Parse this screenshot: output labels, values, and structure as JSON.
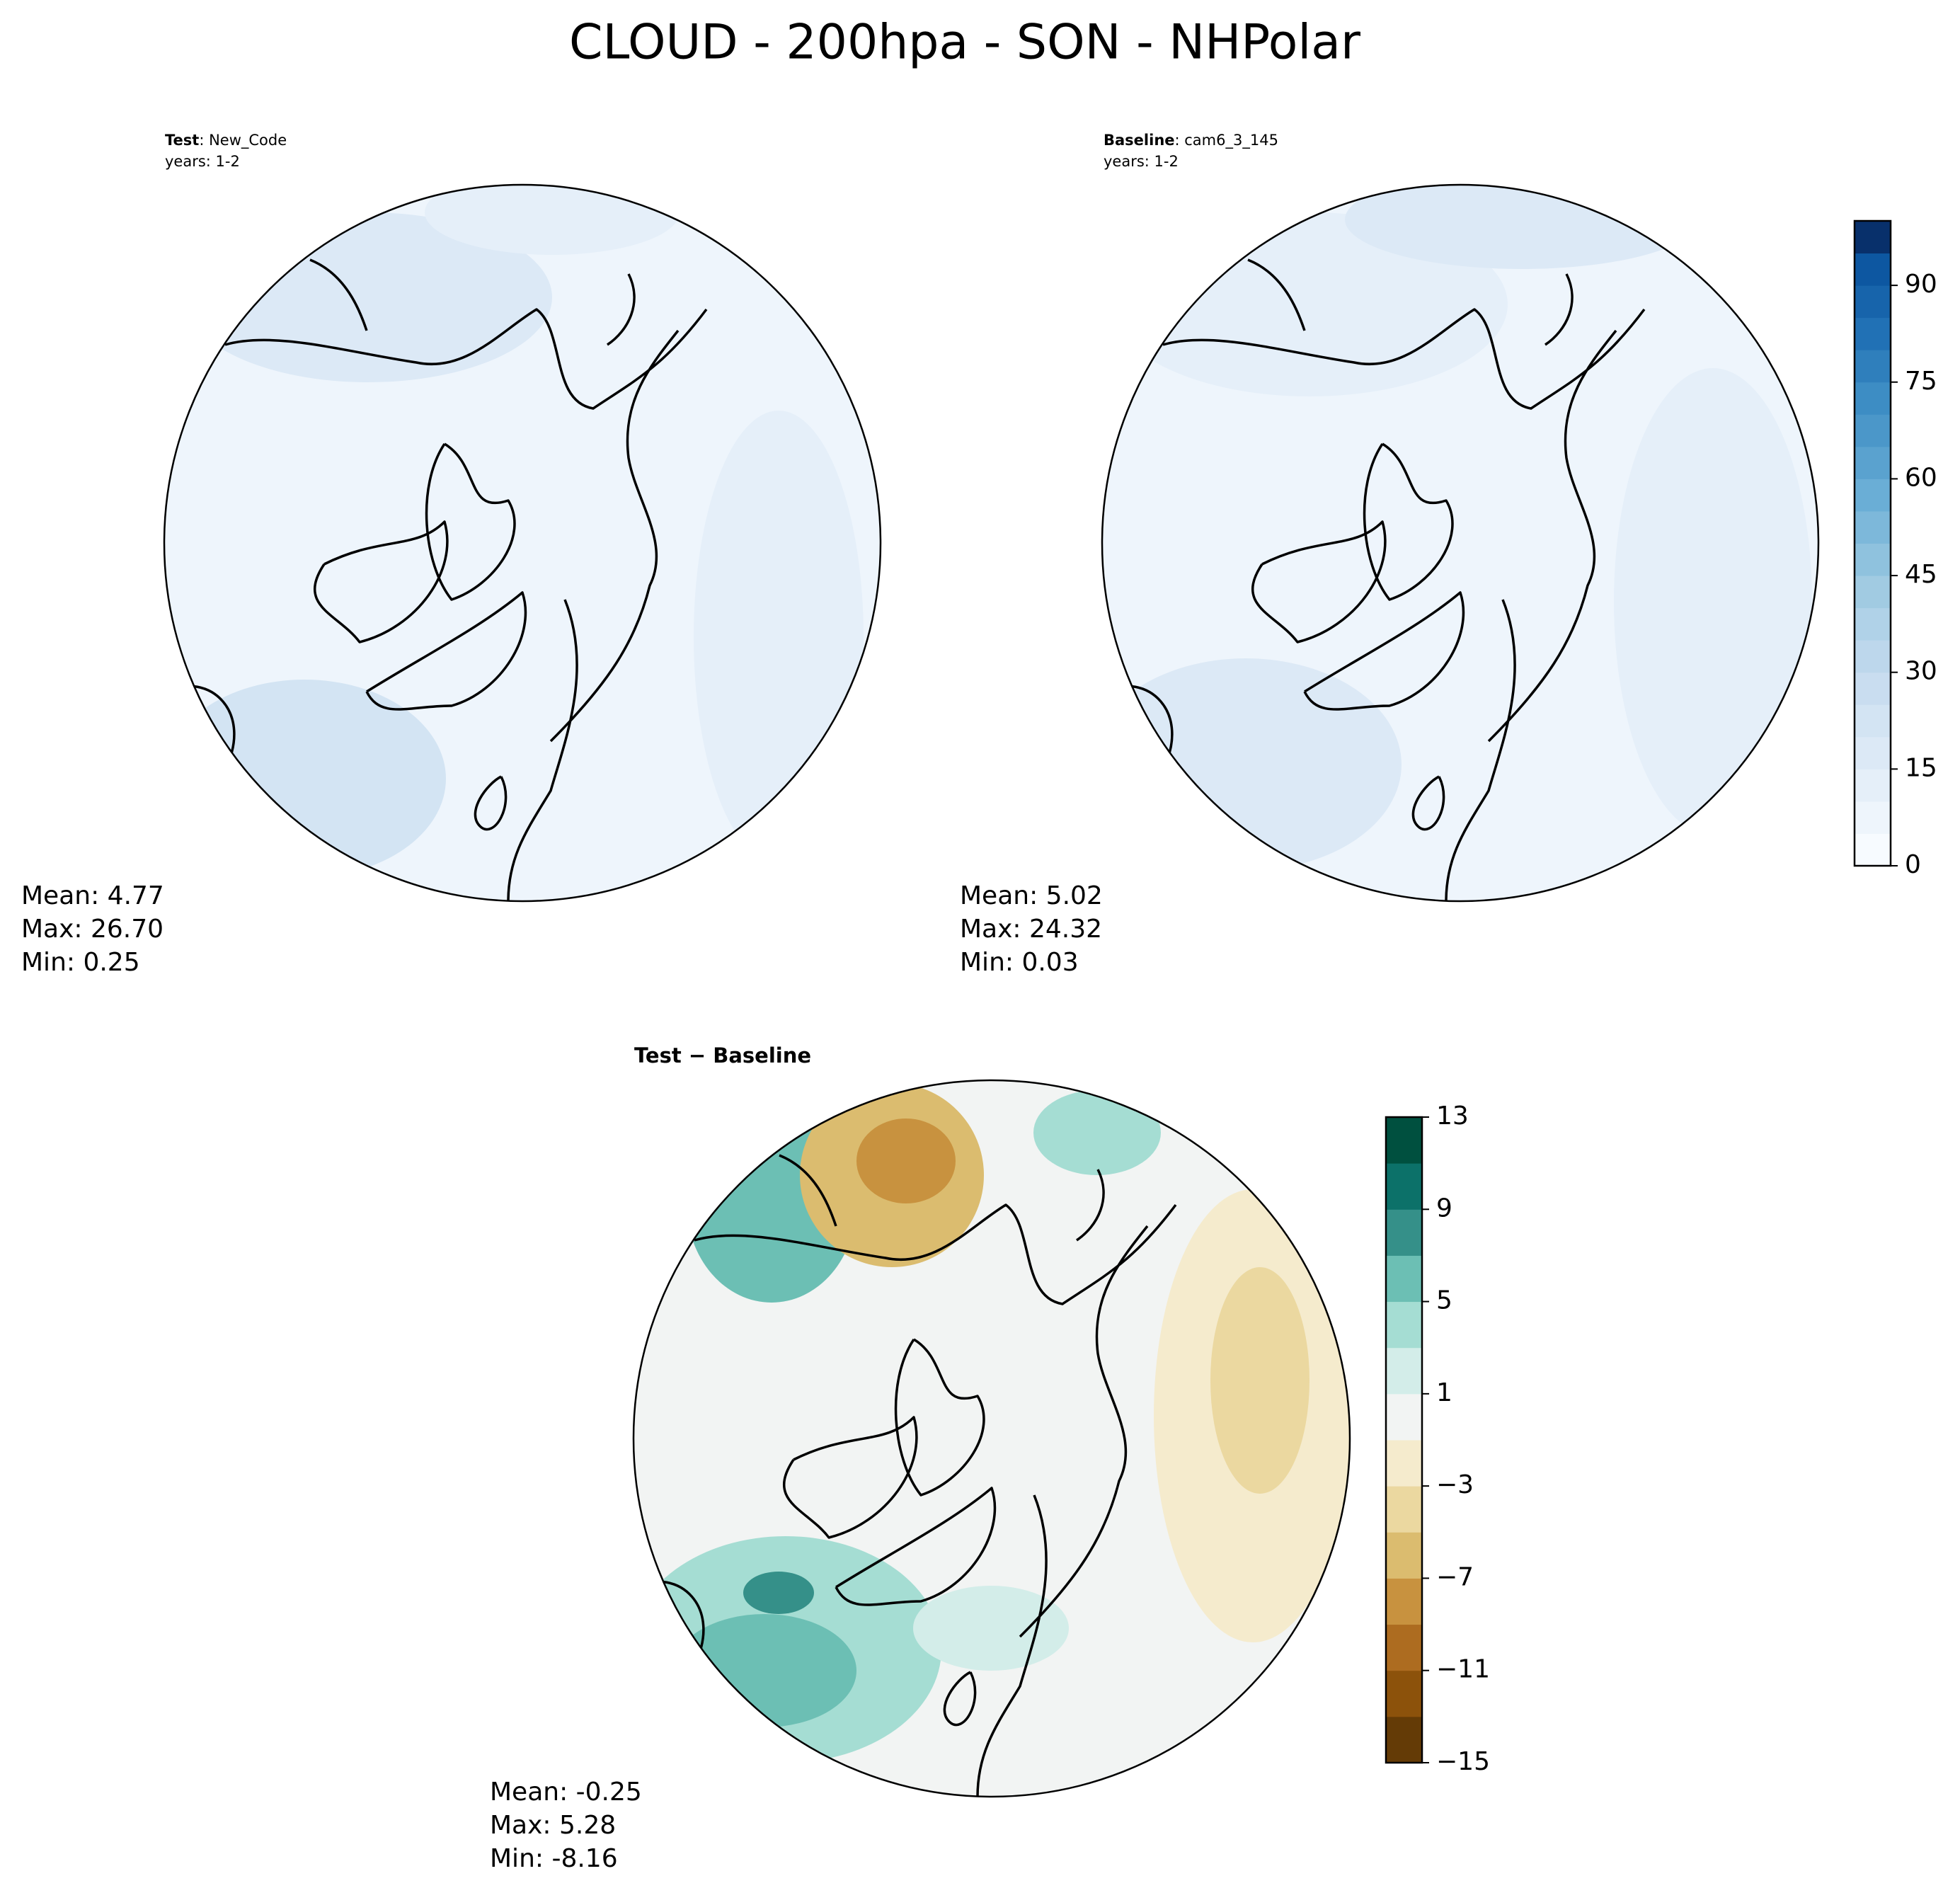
{
  "title": "CLOUD - 200hpa - SON - NHPolar",
  "panels": [
    {
      "label": "Test",
      "case": ": New_Code",
      "years": "years: 1-2",
      "stats": [
        "Mean:  4.77",
        "Max: 26.70",
        "Min:  0.25"
      ]
    },
    {
      "label": "Baseline",
      "case": ": cam6_3_145",
      "years": "years: 1-2",
      "stats": [
        "Mean:  5.02",
        "Max: 24.32",
        "Min:  0.03"
      ]
    },
    {
      "label": "Test − Baseline",
      "stats": [
        "Mean: -0.25",
        "Max:  5.28",
        "Min: -8.16"
      ]
    }
  ],
  "colorbars": [
    {
      "lim": [
        0,
        100
      ],
      "ticks": [
        0,
        15,
        30,
        45,
        60,
        75,
        90
      ],
      "colors": [
        "#f7fbff",
        "#eef5fc",
        "#e5eff9",
        "#dce9f6",
        "#d3e4f3",
        "#c9ddf0",
        "#bdd7ec",
        "#b0d2e8",
        "#a1cbe2",
        "#8fc2de",
        "#7db8da",
        "#6aaed6",
        "#5aa2cf",
        "#4b97c9",
        "#3d8dc4",
        "#2f7fbc",
        "#2171b5",
        "#1764ab",
        "#0d57a1",
        "#08306b"
      ]
    },
    {
      "lim": [
        -15,
        13
      ],
      "ticks": [
        {
          "value": -15,
          "label": "−15"
        },
        {
          "value": -11,
          "label": "−11"
        },
        {
          "value": -7,
          "label": "−7"
        },
        {
          "value": -3,
          "label": "−3"
        },
        1,
        5,
        9,
        13
      ],
      "colors": [
        "#643b06",
        "#8c520b",
        "#ad6c20",
        "#c8923f",
        "#dbbc6f",
        "#ebd8a0",
        "#f5ebcd",
        "#f2f4f3",
        "#d3ede9",
        "#a5ddd3",
        "#6cbfb4",
        "#359089",
        "#0c7169",
        "#00503f"
      ]
    }
  ]
}
